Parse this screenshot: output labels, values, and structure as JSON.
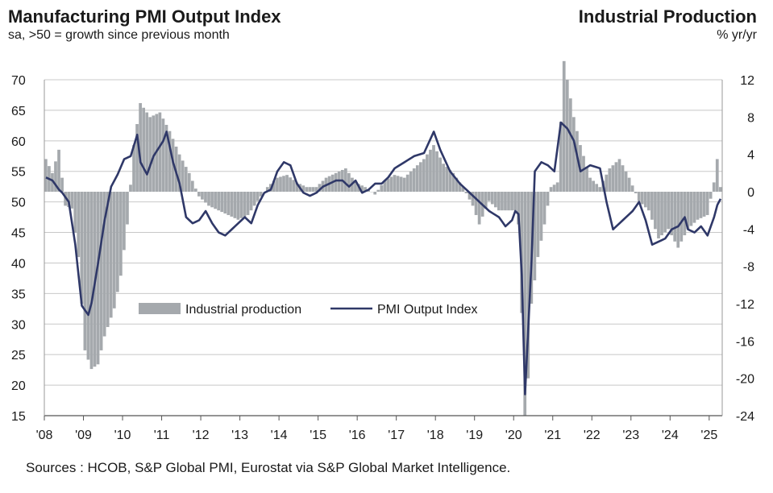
{
  "header": {
    "left_title": "Manufacturing PMI Output Index",
    "left_subtitle": "sa, >50 = growth  since previous  month",
    "right_title": "Industrial Production",
    "right_subtitle": "% yr/yr"
  },
  "footer": {
    "source": "Sources : HCOB, S&P Global PMI, Eurostat via S&P Global Market Intelligence."
  },
  "chart_data": {
    "type": "bar+line",
    "x_start": "2008-01",
    "x_end": "2025-04",
    "x_ticks": [
      "'08",
      "'09",
      "'10",
      "'11",
      "'12",
      "'13",
      "'14",
      "'15",
      "'16",
      "'17",
      "'18",
      "'19",
      "'20",
      "'21",
      "'22",
      "'23",
      "'24",
      "'25"
    ],
    "left_axis": {
      "min": 15,
      "max": 70,
      "ticks": [
        15,
        20,
        25,
        30,
        35,
        40,
        45,
        50,
        55,
        60,
        65,
        70
      ]
    },
    "right_axis": {
      "min": -24,
      "max": 12,
      "ticks": [
        -24,
        -20,
        -16,
        -12,
        -8,
        -4,
        0,
        4,
        8,
        12
      ]
    },
    "legend": {
      "placement": "middle-left",
      "entries": [
        "Industrial production",
        "PMI Output Index"
      ]
    },
    "colors": {
      "bars": "#a5a9ad",
      "line": "#2f3868",
      "grid": "#c8c8c8"
    },
    "series": [
      {
        "name": "Industrial production",
        "type": "bar",
        "axis": "right",
        "anchors": [
          [
            "2008-01",
            3.5
          ],
          [
            "2008-03",
            2.0
          ],
          [
            "2008-05",
            4.5
          ],
          [
            "2008-07",
            -1.5
          ],
          [
            "2008-09",
            -1.8
          ],
          [
            "2008-11",
            -7.0
          ],
          [
            "2009-01",
            -17.0
          ],
          [
            "2009-03",
            -19.0
          ],
          [
            "2009-05",
            -18.5
          ],
          [
            "2009-07",
            -15.5
          ],
          [
            "2009-10",
            -12.5
          ],
          [
            "2009-12",
            -9.0
          ],
          [
            "2010-02",
            -3.5
          ],
          [
            "2010-04",
            5.0
          ],
          [
            "2010-06",
            9.5
          ],
          [
            "2010-09",
            8.0
          ],
          [
            "2010-12",
            8.5
          ],
          [
            "2011-03",
            6.5
          ],
          [
            "2011-06",
            4.0
          ],
          [
            "2011-09",
            2.0
          ],
          [
            "2011-12",
            -0.5
          ],
          [
            "2012-03",
            -1.5
          ],
          [
            "2012-06",
            -2.0
          ],
          [
            "2012-09",
            -2.5
          ],
          [
            "2012-12",
            -3.0
          ],
          [
            "2013-03",
            -2.5
          ],
          [
            "2013-06",
            -1.0
          ],
          [
            "2013-09",
            0.5
          ],
          [
            "2013-12",
            1.5
          ],
          [
            "2014-03",
            1.8
          ],
          [
            "2014-06",
            1.0
          ],
          [
            "2014-09",
            0.5
          ],
          [
            "2014-12",
            0.5
          ],
          [
            "2015-03",
            1.5
          ],
          [
            "2015-06",
            2.0
          ],
          [
            "2015-09",
            2.5
          ],
          [
            "2015-12",
            1.0
          ],
          [
            "2016-03",
            0.5
          ],
          [
            "2016-06",
            -0.3
          ],
          [
            "2016-09",
            1.2
          ],
          [
            "2016-12",
            1.8
          ],
          [
            "2017-03",
            1.5
          ],
          [
            "2017-06",
            2.5
          ],
          [
            "2017-09",
            3.5
          ],
          [
            "2017-12",
            5.0
          ],
          [
            "2018-03",
            3.0
          ],
          [
            "2018-06",
            2.0
          ],
          [
            "2018-09",
            0.5
          ],
          [
            "2018-12",
            -1.5
          ],
          [
            "2019-02",
            -3.5
          ],
          [
            "2019-05",
            -1.0
          ],
          [
            "2019-08",
            -2.0
          ],
          [
            "2019-11",
            -2.0
          ],
          [
            "2020-01",
            -2.0
          ],
          [
            "2020-02",
            -3.5
          ],
          [
            "2020-03",
            -13.0
          ],
          [
            "2020-04",
            -24.0
          ],
          [
            "2020-05",
            -20.0
          ],
          [
            "2020-06",
            -12.0
          ],
          [
            "2020-08",
            -7.0
          ],
          [
            "2020-10",
            -3.5
          ],
          [
            "2020-12",
            0.5
          ],
          [
            "2021-02",
            1.0
          ],
          [
            "2021-04",
            14.0
          ],
          [
            "2021-05",
            12.0
          ],
          [
            "2021-07",
            8.0
          ],
          [
            "2021-09",
            5.0
          ],
          [
            "2021-12",
            1.5
          ],
          [
            "2022-03",
            0.5
          ],
          [
            "2022-06",
            2.5
          ],
          [
            "2022-09",
            3.5
          ],
          [
            "2022-12",
            1.5
          ],
          [
            "2023-03",
            -1.0
          ],
          [
            "2023-06",
            -2.0
          ],
          [
            "2023-09",
            -5.0
          ],
          [
            "2023-12",
            -4.0
          ],
          [
            "2024-03",
            -6.0
          ],
          [
            "2024-06",
            -4.0
          ],
          [
            "2024-09",
            -3.0
          ],
          [
            "2024-12",
            -2.5
          ],
          [
            "2025-02",
            1.0
          ],
          [
            "2025-03",
            3.5
          ],
          [
            "2025-04",
            0.5
          ]
        ]
      },
      {
        "name": "PMI Output Index",
        "type": "line",
        "axis": "left",
        "anchors": [
          [
            "2008-01",
            54.0
          ],
          [
            "2008-03",
            53.5
          ],
          [
            "2008-05",
            52.0
          ],
          [
            "2008-06",
            51.5
          ],
          [
            "2008-08",
            50.0
          ],
          [
            "2008-10",
            43.0
          ],
          [
            "2008-12",
            33.0
          ],
          [
            "2009-02",
            31.5
          ],
          [
            "2009-03",
            33.5
          ],
          [
            "2009-05",
            40.0
          ],
          [
            "2009-07",
            47.0
          ],
          [
            "2009-09",
            52.5
          ],
          [
            "2009-11",
            54.5
          ],
          [
            "2010-01",
            57.0
          ],
          [
            "2010-03",
            57.5
          ],
          [
            "2010-05",
            61.0
          ],
          [
            "2010-06",
            56.5
          ],
          [
            "2010-08",
            54.5
          ],
          [
            "2010-10",
            57.5
          ],
          [
            "2011-01",
            60.0
          ],
          [
            "2011-02",
            61.5
          ],
          [
            "2011-04",
            56.5
          ],
          [
            "2011-06",
            53.0
          ],
          [
            "2011-08",
            47.5
          ],
          [
            "2011-10",
            46.5
          ],
          [
            "2011-12",
            47.0
          ],
          [
            "2012-02",
            48.5
          ],
          [
            "2012-04",
            46.5
          ],
          [
            "2012-06",
            45.0
          ],
          [
            "2012-08",
            44.5
          ],
          [
            "2012-10",
            45.5
          ],
          [
            "2012-12",
            46.5
          ],
          [
            "2013-02",
            47.5
          ],
          [
            "2013-04",
            46.5
          ],
          [
            "2013-06",
            49.5
          ],
          [
            "2013-08",
            51.5
          ],
          [
            "2013-10",
            52.0
          ],
          [
            "2013-12",
            55.0
          ],
          [
            "2014-02",
            56.5
          ],
          [
            "2014-04",
            56.0
          ],
          [
            "2014-06",
            53.0
          ],
          [
            "2014-08",
            51.5
          ],
          [
            "2014-10",
            51.0
          ],
          [
            "2014-12",
            51.5
          ],
          [
            "2015-02",
            52.5
          ],
          [
            "2015-04",
            53.0
          ],
          [
            "2015-06",
            53.5
          ],
          [
            "2015-08",
            53.5
          ],
          [
            "2015-10",
            52.5
          ],
          [
            "2015-12",
            53.5
          ],
          [
            "2016-02",
            51.5
          ],
          [
            "2016-04",
            52.0
          ],
          [
            "2016-06",
            53.0
          ],
          [
            "2016-08",
            53.0
          ],
          [
            "2016-10",
            54.0
          ],
          [
            "2016-12",
            55.5
          ],
          [
            "2017-03",
            56.5
          ],
          [
            "2017-06",
            57.5
          ],
          [
            "2017-09",
            58.0
          ],
          [
            "2017-12",
            61.5
          ],
          [
            "2018-02",
            58.5
          ],
          [
            "2018-05",
            55.0
          ],
          [
            "2018-08",
            53.0
          ],
          [
            "2018-11",
            51.5
          ],
          [
            "2019-02",
            50.0
          ],
          [
            "2019-05",
            48.5
          ],
          [
            "2019-08",
            47.5
          ],
          [
            "2019-10",
            46.0
          ],
          [
            "2019-12",
            47.0
          ],
          [
            "2020-01",
            48.5
          ],
          [
            "2020-02",
            48.0
          ],
          [
            "2020-03",
            38.0
          ],
          [
            "2020-04",
            18.5
          ],
          [
            "2020-05",
            29.5
          ],
          [
            "2020-06",
            40.5
          ],
          [
            "2020-07",
            55.0
          ],
          [
            "2020-09",
            56.5
          ],
          [
            "2020-11",
            56.0
          ],
          [
            "2021-01",
            55.0
          ],
          [
            "2021-03",
            63.0
          ],
          [
            "2021-05",
            62.0
          ],
          [
            "2021-07",
            60.0
          ],
          [
            "2021-09",
            55.0
          ],
          [
            "2021-12",
            56.0
          ],
          [
            "2022-03",
            55.5
          ],
          [
            "2022-05",
            50.0
          ],
          [
            "2022-07",
            45.5
          ],
          [
            "2022-09",
            46.5
          ],
          [
            "2022-11",
            47.5
          ],
          [
            "2023-01",
            48.5
          ],
          [
            "2023-03",
            50.0
          ],
          [
            "2023-05",
            47.0
          ],
          [
            "2023-07",
            43.0
          ],
          [
            "2023-09",
            43.5
          ],
          [
            "2023-11",
            44.0
          ],
          [
            "2024-01",
            45.5
          ],
          [
            "2024-03",
            46.0
          ],
          [
            "2024-05",
            47.5
          ],
          [
            "2024-06",
            45.5
          ],
          [
            "2024-08",
            45.0
          ],
          [
            "2024-10",
            46.0
          ],
          [
            "2024-12",
            44.5
          ],
          [
            "2025-02",
            47.5
          ],
          [
            "2025-03",
            49.5
          ],
          [
            "2025-04",
            50.5
          ]
        ]
      }
    ]
  }
}
